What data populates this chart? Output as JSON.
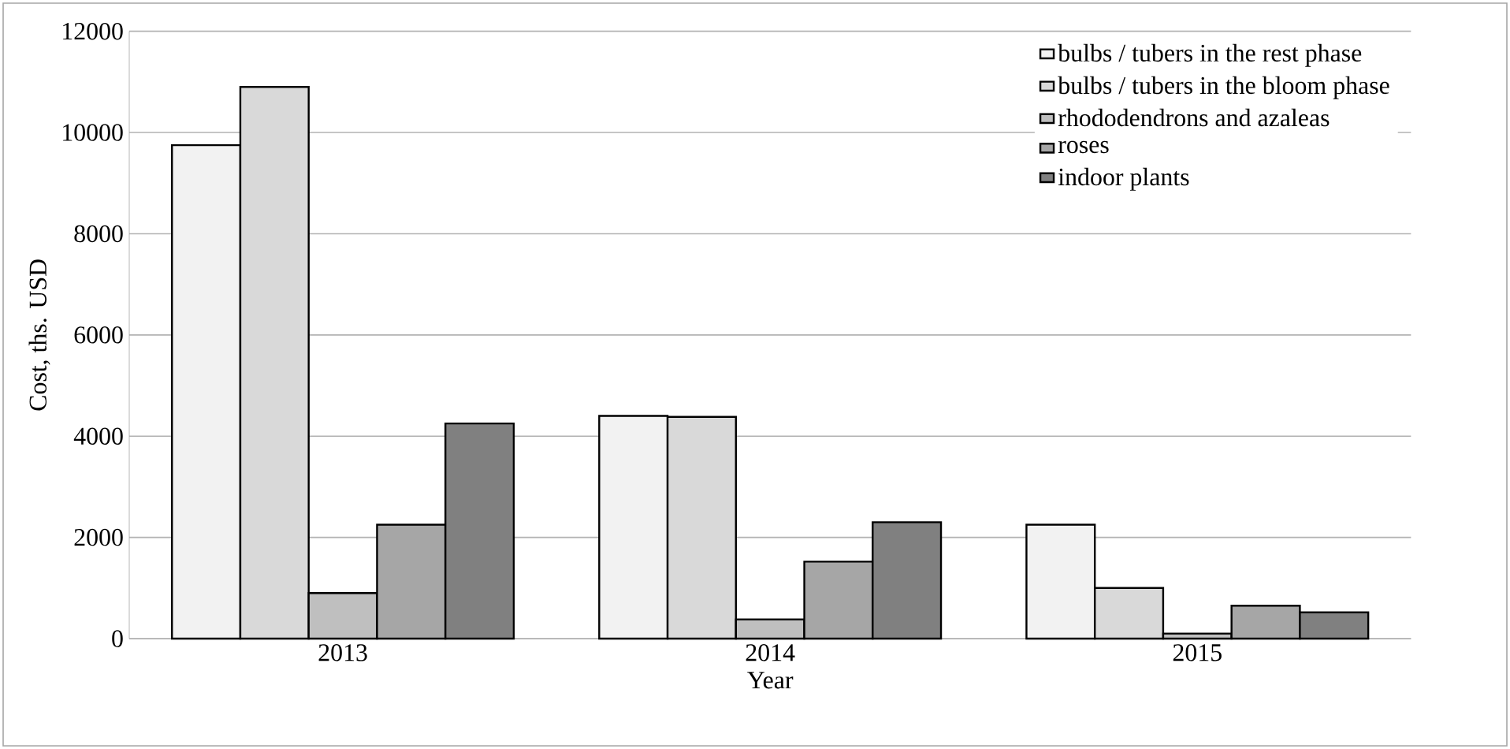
{
  "chart_data": {
    "type": "bar",
    "xlabel": "Year",
    "ylabel": "Cost, ths. USD",
    "categories": [
      "2013",
      "2014",
      "2015"
    ],
    "series": [
      {
        "name": "bulbs / tubers in the rest phase",
        "color": "#f2f2f2",
        "values": [
          9750,
          4400,
          2250
        ]
      },
      {
        "name": "bulbs / tubers in the bloom phase",
        "color": "#d9d9d9",
        "values": [
          10900,
          4380,
          1000
        ]
      },
      {
        "name": "rhododendrons and azaleas",
        "color": "#bfbfbf",
        "values": [
          900,
          380,
          100
        ]
      },
      {
        "name": "roses",
        "color": "#a6a6a6",
        "values": [
          2250,
          1520,
          650
        ]
      },
      {
        "name": "indoor plants",
        "color": "#808080",
        "values": [
          4250,
          2300,
          520
        ]
      }
    ],
    "ylim": [
      0,
      12000
    ],
    "yticks": [
      0,
      2000,
      4000,
      6000,
      8000,
      10000,
      12000
    ],
    "grid": "y",
    "legend": "top right"
  }
}
